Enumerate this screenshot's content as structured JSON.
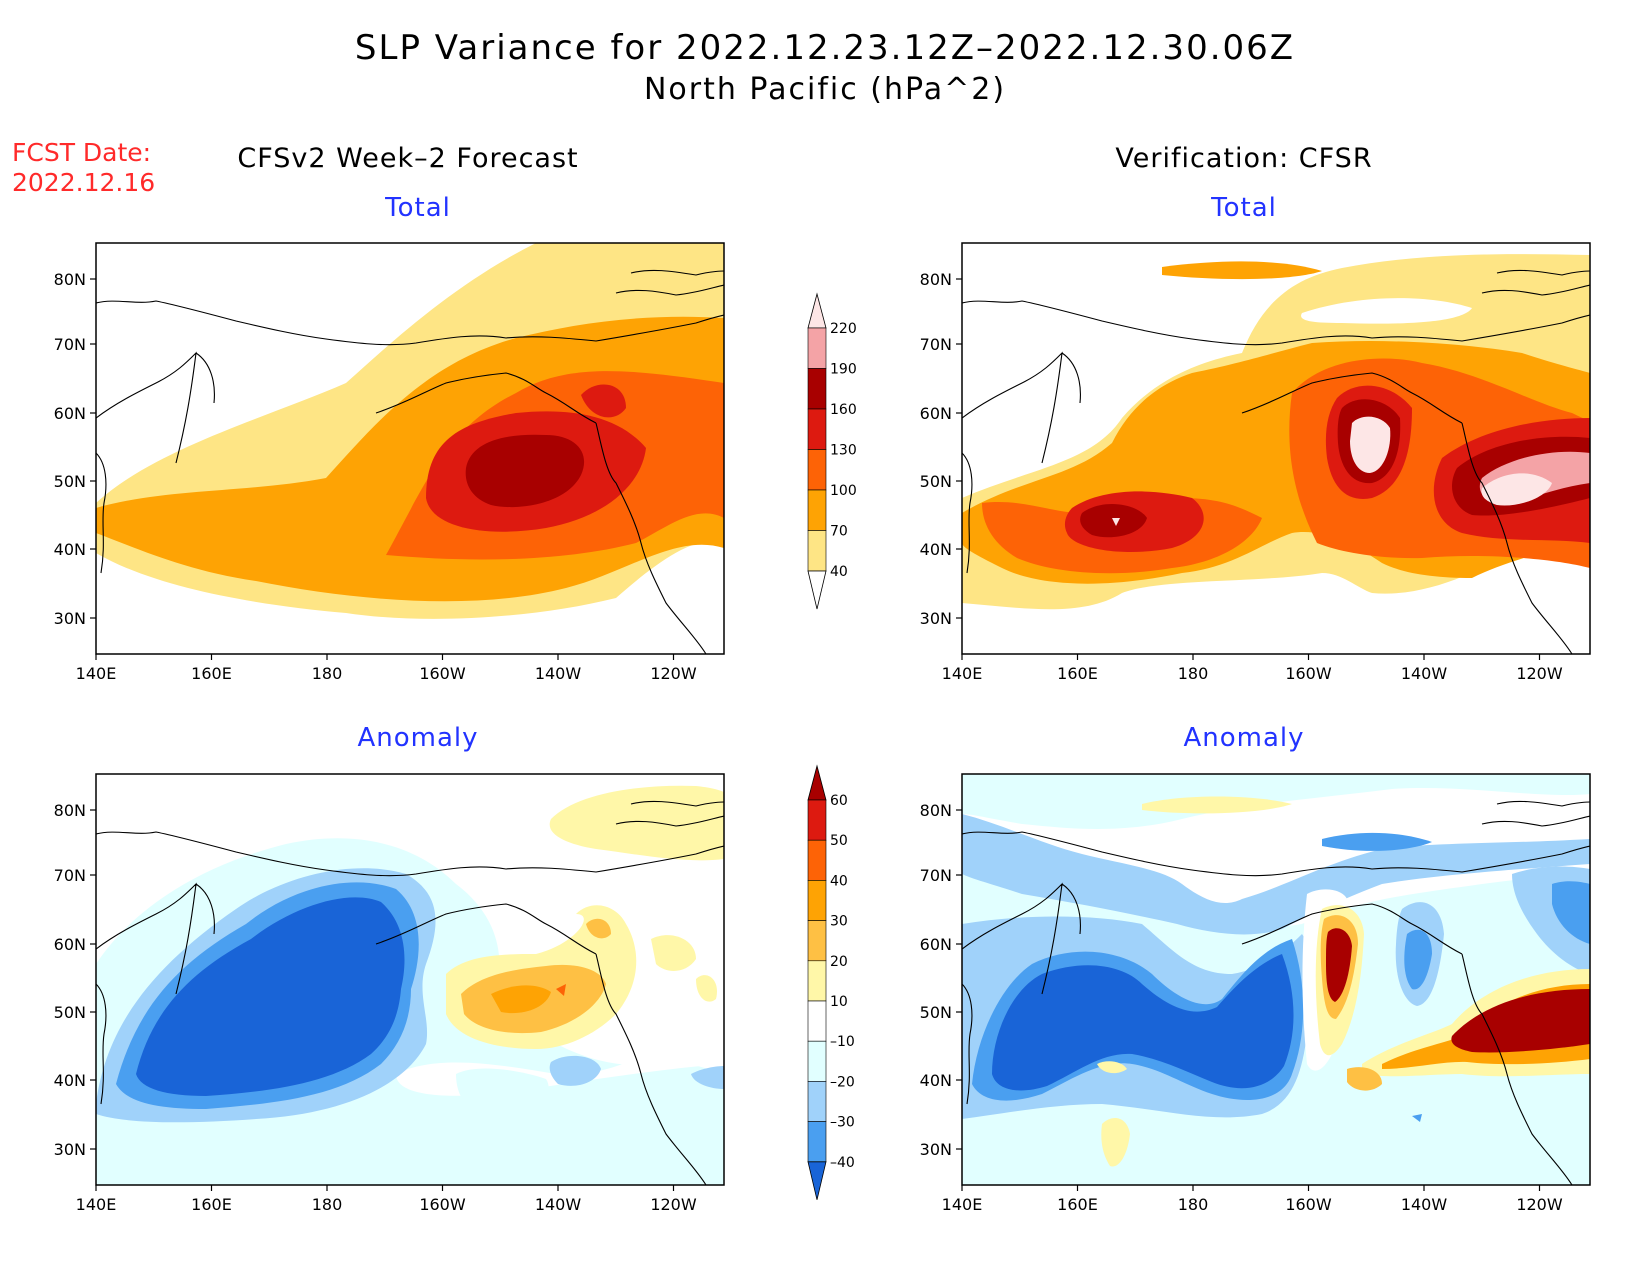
{
  "title": {
    "line1": "SLP Variance for 2022.12.23.12Z–2022.12.30.06Z",
    "line2": "North Pacific (hPa^2)"
  },
  "fcst_date": {
    "label": "FCST Date:",
    "value": "2022.12.16"
  },
  "columns": {
    "left": "CFSv2 Week–2 Forecast",
    "right": "Verification: CFSR"
  },
  "panels": [
    {
      "id": "fcst-total",
      "title": "Total"
    },
    {
      "id": "verif-total",
      "title": "Total"
    },
    {
      "id": "fcst-anomaly",
      "title": "Anomaly"
    },
    {
      "id": "verif-anomaly",
      "title": "Anomaly"
    }
  ],
  "axes": {
    "lon_ticks": [
      "140E",
      "160E",
      "180",
      "160W",
      "140W",
      "120W"
    ],
    "lat_ticks": [
      "30N",
      "40N",
      "50N",
      "60N",
      "70N",
      "80N"
    ]
  },
  "colorbar_total": {
    "levels": [
      "220",
      "190",
      "160",
      "130",
      "100",
      "70",
      "40"
    ],
    "colors": [
      "#fde6e6",
      "#f4a3a6",
      "#a80000",
      "#dd1a10",
      "#fd6306",
      "#fea304",
      "#fee585",
      "#ffffff"
    ]
  },
  "colorbar_anomaly": {
    "levels": [
      "60",
      "50",
      "40",
      "30",
      "20",
      "10",
      "–10",
      "–20",
      "–30",
      "–40"
    ],
    "colors": [
      "#a80000",
      "#dd1a10",
      "#fd6306",
      "#fea304",
      "#fec044",
      "#fff7a8",
      "#ffffff",
      "#e1ffff",
      "#a0d2fa",
      "#4a9ff0",
      "#1964d7"
    ]
  }
}
